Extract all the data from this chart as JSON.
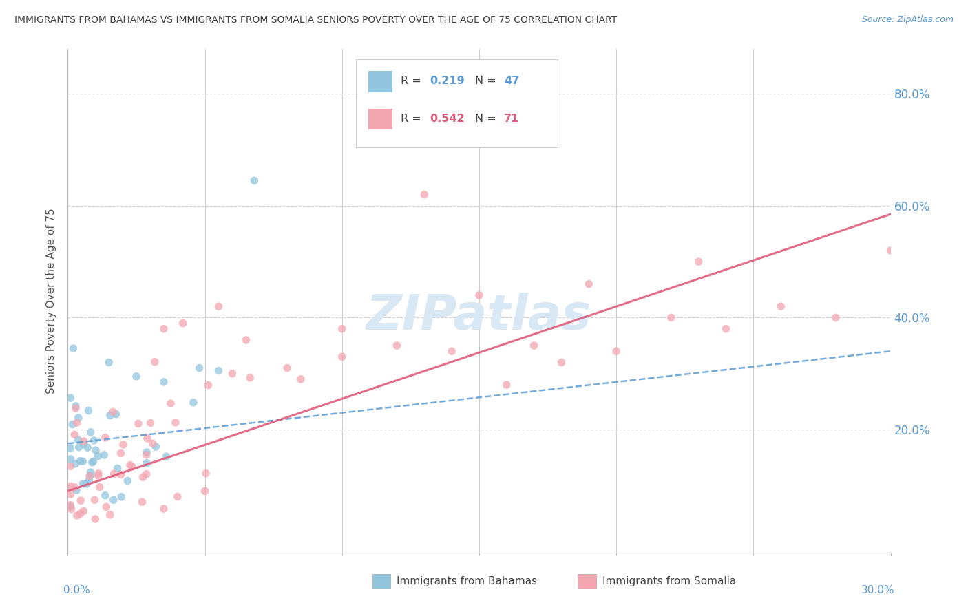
{
  "title": "IMMIGRANTS FROM BAHAMAS VS IMMIGRANTS FROM SOMALIA SENIORS POVERTY OVER THE AGE OF 75 CORRELATION CHART",
  "source": "Source: ZipAtlas.com",
  "ylabel": "Seniors Poverty Over the Age of 75",
  "x_lim": [
    0.0,
    0.3
  ],
  "y_lim": [
    -0.02,
    0.88
  ],
  "bahamas_color": "#92c5de",
  "somalia_color": "#f4a6b0",
  "bahamas_line_color": "#5b9bd5",
  "somalia_line_color": "#e05c7a",
  "axis_label_color": "#5b9bd5",
  "grid_color": "#d0d0d0",
  "watermark_color": "#d8e8f5",
  "title_color": "#404040"
}
